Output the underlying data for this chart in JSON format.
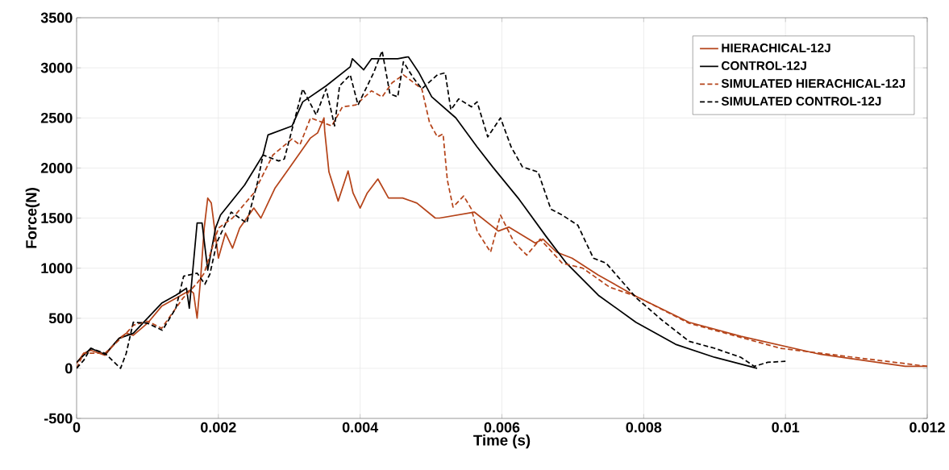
{
  "chart_data": {
    "type": "line",
    "xlabel": "Time (s)",
    "ylabel": "Force(N)",
    "xlim": [
      0,
      0.012
    ],
    "ylim": [
      -500,
      3500
    ],
    "xticks": [
      0,
      0.002,
      0.004,
      0.006,
      0.008,
      0.01,
      0.012
    ],
    "yticks": [
      -500,
      0,
      500,
      1000,
      1500,
      2000,
      2500,
      3000,
      3500
    ],
    "grid": true,
    "legend": "top right",
    "marker": "none",
    "series": [
      {
        "name": "HIERACHICAL-12J",
        "color": "#b5441a",
        "line_style": "solid",
        "x": [
          0,
          0.0001,
          0.0002,
          0.0004,
          0.0006,
          0.0007,
          0.0008,
          0.001,
          0.0012,
          0.0014,
          0.0016,
          0.00165,
          0.0017,
          0.00175,
          0.0018,
          0.00185,
          0.0019,
          0.002,
          0.0021,
          0.0022,
          0.0023,
          0.0025,
          0.0026,
          0.0028,
          0.003,
          0.0032,
          0.0033,
          0.0034,
          0.00349,
          0.0035,
          0.00356,
          0.00369,
          0.00383,
          0.0039,
          0.004,
          0.0041,
          0.00425,
          0.0044,
          0.0046,
          0.0048,
          0.00506,
          0.00512,
          0.00561,
          0.00595,
          0.0061,
          0.00647,
          0.00658,
          0.00677,
          0.00699,
          0.00736,
          0.00789,
          0.00864,
          0.00937,
          0.01049,
          0.01169,
          0.012
        ],
        "values": [
          50,
          150,
          180,
          130,
          300,
          350,
          330,
          450,
          620,
          700,
          780,
          750,
          500,
          900,
          1400,
          1700,
          1650,
          1100,
          1350,
          1200,
          1400,
          1600,
          1500,
          1800,
          2000,
          2200,
          2300,
          2350,
          2500,
          2370,
          1960,
          1670,
          1970,
          1750,
          1600,
          1750,
          1890,
          1700,
          1700,
          1650,
          1500,
          1500,
          1560,
          1370,
          1410,
          1250,
          1290,
          1160,
          1100,
          930,
          720,
          460,
          320,
          140,
          20,
          20
        ]
      },
      {
        "name": "CONTROL-12J",
        "color": "#000000",
        "line_style": "solid",
        "x": [
          0,
          0.0002,
          0.0004,
          0.0006,
          0.0008,
          0.001,
          0.0012,
          0.0014,
          0.00155,
          0.00159,
          0.0017,
          0.00177,
          0.00185,
          0.00196,
          0.00203,
          0.00237,
          0.00263,
          0.0027,
          0.00304,
          0.00319,
          0.00352,
          0.00386,
          0.00389,
          0.00405,
          0.00416,
          0.00453,
          0.00468,
          0.00483,
          0.00501,
          0.00535,
          0.00565,
          0.00587,
          0.00624,
          0.00662,
          0.00691,
          0.00736,
          0.00789,
          0.00845,
          0.009,
          0.0096
        ],
        "values": [
          60,
          200,
          140,
          300,
          350,
          500,
          650,
          730,
          800,
          600,
          1450,
          1450,
          980,
          1400,
          1530,
          1830,
          2130,
          2330,
          2420,
          2660,
          2820,
          3010,
          3090,
          2980,
          3090,
          3090,
          3110,
          2950,
          2710,
          2500,
          2210,
          2010,
          1690,
          1320,
          1050,
          730,
          460,
          240,
          110,
          0
        ]
      },
      {
        "name": "SIMULATED HIERACHICAL-12J",
        "color": "#b5441a",
        "line_style": "dashed",
        "x": [
          0,
          0.0001,
          0.0004,
          0.0007,
          0.0008,
          0.001,
          0.0012,
          0.0013,
          0.0015,
          0.0017,
          0.0018,
          0.002,
          0.0022,
          0.0025,
          0.00277,
          0.00304,
          0.00315,
          0.0033,
          0.0036,
          0.00375,
          0.00394,
          0.00416,
          0.00431,
          0.00445,
          0.00461,
          0.00487,
          0.00498,
          0.00509,
          0.00517,
          0.00523,
          0.00531,
          0.00546,
          0.00557,
          0.00565,
          0.00584,
          0.00598,
          0.00617,
          0.00635,
          0.00654,
          0.00685,
          0.00714,
          0.00752,
          0.00789,
          0.00864,
          0.00993,
          0.012
        ],
        "values": [
          0,
          150,
          150,
          350,
          430,
          470,
          400,
          500,
          700,
          850,
          950,
          1400,
          1500,
          1750,
          2130,
          2290,
          2230,
          2500,
          2420,
          2610,
          2630,
          2770,
          2710,
          2850,
          2930,
          2790,
          2450,
          2310,
          2340,
          1880,
          1610,
          1720,
          1590,
          1370,
          1160,
          1530,
          1260,
          1130,
          1290,
          1050,
          1000,
          810,
          720,
          450,
          200,
          20
        ]
      },
      {
        "name": "SIMULATED CONTROL-12J",
        "color": "#000000",
        "line_style": "dashed",
        "x": [
          0,
          0.0001,
          0.0002,
          0.0004,
          0.00062,
          0.0007,
          0.0008,
          0.001,
          0.00121,
          0.0014,
          0.00151,
          0.0017,
          0.00181,
          0.00188,
          0.00198,
          0.00218,
          0.0024,
          0.00255,
          0.00263,
          0.00285,
          0.00293,
          0.00319,
          0.00338,
          0.00352,
          0.00364,
          0.00371,
          0.00386,
          0.00397,
          0.00419,
          0.00431,
          0.00442,
          0.00453,
          0.00461,
          0.00475,
          0.00487,
          0.00509,
          0.0052,
          0.00528,
          0.00539,
          0.00557,
          0.00565,
          0.0058,
          0.00598,
          0.00613,
          0.00629,
          0.00651,
          0.00669,
          0.00685,
          0.00707,
          0.00729,
          0.00747,
          0.00763,
          0.0079,
          0.00826,
          0.00864,
          0.009,
          0.00937,
          0.00956,
          0.00975,
          0.01
        ],
        "values": [
          0,
          80,
          200,
          150,
          0,
          150,
          460,
          450,
          380,
          600,
          920,
          950,
          840,
          940,
          1260,
          1560,
          1450,
          1850,
          2130,
          2070,
          2090,
          2790,
          2530,
          2790,
          2420,
          2820,
          2930,
          2630,
          2950,
          3170,
          2740,
          2710,
          3060,
          2900,
          2790,
          2930,
          2950,
          2580,
          2690,
          2610,
          2660,
          2310,
          2500,
          2210,
          2010,
          1960,
          1590,
          1530,
          1430,
          1100,
          1050,
          920,
          700,
          480,
          270,
          200,
          110,
          20,
          60,
          70
        ]
      }
    ]
  }
}
